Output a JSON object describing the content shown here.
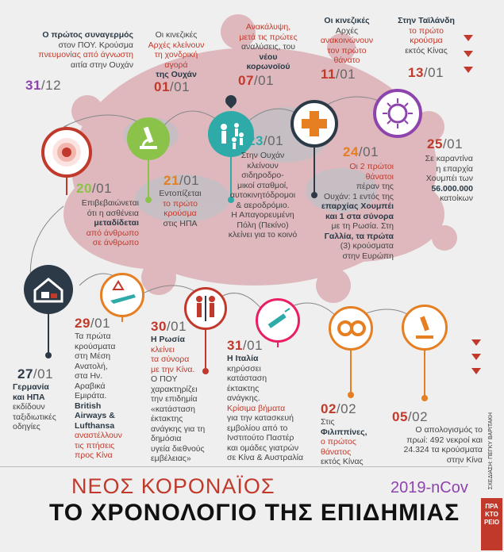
{
  "title_top": "ΝΕΟΣ ΚΟΡΟΝΑΪΟΣ",
  "title_main": "ΤΟ ΧΡΟΝΟΛΟΓΙΟ ΤΗΣ ΕΠΙΔΗΜΙΑΣ",
  "virus_name": "2019-nCov",
  "credit": "ΣΧΕΔΙΑΣΗ: ΠΕΓΚΥ ΒΑΡΙΤΑΚΗ",
  "logo": "ΠΡΑ ΚΤΟ ΡΕΙΟ",
  "colors": {
    "red": "#c0392b",
    "green": "#8bc34a",
    "orange": "#e67e22",
    "purple": "#8e44ad",
    "teal": "#2eaaa8",
    "pink": "#e91e63",
    "navy": "#2b3a46",
    "virus": "#d9a6ad"
  },
  "events": [
    {
      "date": "31",
      "month": "/12",
      "icon": "alarm-icon",
      "l1": "Ο πρώτος συναγερμός",
      "l2": "στον ΠΟΥ. Κρούσμα",
      "l3": "πνευμονίας από άγνωστη",
      "l4": "αιτία στην Ουχάν"
    },
    {
      "date": "01",
      "month": "/01",
      "l1": "Οι κινεζικές",
      "l2": "Αρχές κλείνουν",
      "l3": "τη χονδρική",
      "l4": "αγορά",
      "l5": "της Ουχάν"
    },
    {
      "date": "07",
      "month": "/01",
      "l1": "Ανακάλυψη,",
      "l2": "μετά τις πρώτες",
      "l3": "αναλύσεις, του",
      "l4": "νέου",
      "l5": "κορωνοϊού"
    },
    {
      "date": "11",
      "month": "/01",
      "l1": "Οι κινεζικές",
      "l2": "Αρχές",
      "l3": "ανακοινώνουν",
      "l4": "τον πρώτο",
      "l5": "θάνατο"
    },
    {
      "date": "13",
      "month": "/01",
      "l1": "Στην Ταϊλάνδη",
      "l2": "το πρώτο",
      "l3": "κρούσμα",
      "l4": "εκτός Κίνας"
    },
    {
      "date": "20",
      "month": "/01",
      "icon": "target-icon",
      "l1": "Επιβεβαιώνεται",
      "l2": "ότι η ασθένεια",
      "l3": "μεταδίδεται",
      "l4": "από άνθρωπο",
      "l5": "σε άνθρωπο"
    },
    {
      "date": "21",
      "month": "/01",
      "icon": "microscope-icon",
      "l1": "Εντοπίζεται",
      "l2": "το πρώτο",
      "l3": "κρούσμα",
      "l4": "στις ΗΠΑ"
    },
    {
      "date": "23",
      "month": "/01",
      "icon": "people-icon",
      "l1": "Στην Ουχάν",
      "l2": "κλείνουν",
      "l3": "σιδηροδρο-",
      "l4": "μικοί σταθμοί,",
      "l5": "αυτοκινητόδρομοι",
      "l6": "& αεροδρόμιο.",
      "l7": "Η Απαγορευμένη",
      "l8": "Πόλη (Πεκίνο)",
      "l9": "κλείνει για το κοινό"
    },
    {
      "date": "24",
      "month": "/01",
      "icon": "medical-cross-icon",
      "l1": "Οι 2 πρώτοι",
      "l2": "θάνατοι",
      "l3": "πέραν της",
      "l4": "Ουχάν: 1 εντός της",
      "l5": "επαρχίας Χουμπέι",
      "l6": "και 1 στα σύνορα",
      "l7": "με τη Ρωσία. Στη",
      "l8": "Γαλλία, τα πρώτα",
      "l9": "(3) κρούσματα",
      "l10": "στην Ευρώπη"
    },
    {
      "date": "25",
      "month": "/01",
      "icon": "virus-icon",
      "l1": "Σε καραντίνα",
      "l2": "η επαρχία",
      "l3": "Χουμπέι των",
      "l4": "56.000.000",
      "l5": "κατοίκων"
    },
    {
      "date": "27",
      "month": "/01",
      "icon": "house-quarantine-icon",
      "l1": "Γερμανία",
      "l2": "και ΗΠΑ",
      "l3": "εκδίδουν",
      "l4": "ταξιδιωτικές",
      "l5": "οδηγίες"
    },
    {
      "date": "29",
      "month": "/01",
      "icon": "airplane-warning-icon",
      "l1": "Τα πρώτα",
      "l2": "κρούσματα",
      "l3": "στη Μέση",
      "l4": "Ανατολή,",
      "l5": "στα Ην.",
      "l6": "Αραβικά",
      "l7": "Εμιράτα.",
      "l8": "British",
      "l9": "Airways &",
      "l10": "Lufthansa",
      "l11": "αναστέλλουν",
      "l12": "τις πτήσεις",
      "l13": "προς Κίνα"
    },
    {
      "date": "30",
      "month": "/01",
      "icon": "border-icon",
      "l1": "Η Ρωσία",
      "l2": "κλείνει",
      "l3": "τα σύνορα",
      "l4": "με την Κίνα.",
      "l5": "Ο ΠΟΥ",
      "l6": "χαρακτηρίζει",
      "l7": "την επιδημία",
      "l8": "«κατάσταση",
      "l9": "έκτακτης",
      "l10": "ανάγκης για τη",
      "l11": "δημόσια",
      "l12": "υγεία διεθνούς",
      "l13": "εμβέλειας»"
    },
    {
      "date": "31",
      "month": "/01",
      "icon": "syringe-icon",
      "l1": "Η Ιταλία",
      "l2": "κηρύσσει",
      "l3": "κατάσταση",
      "l4": "έκτακτης",
      "l5": "ανάγκης.",
      "l6": "Κρίσιμα βήματα",
      "l7": "για την κατασκευή",
      "l8": "εμβολίου από το",
      "l9": "Ινστιτούτο Παστέρ",
      "l10": "και ομάδες γιατρών",
      "l11": "σε Κίνα & Αυστραλία"
    },
    {
      "date": "02",
      "month": "/02",
      "icon": "gears-icon",
      "l1": "Στις",
      "l2": "Φιλιππίνες,",
      "l3": "ο πρώτος",
      "l4": "θάνατος",
      "l5": "εκτός Κίνας"
    },
    {
      "date": "05",
      "month": "/02",
      "icon": "microscope-icon",
      "l1": "Ο απολογισμός το",
      "l2": "πρωί: 492 νεκροί και",
      "l3": "24.324 τα κρούσματα",
      "l4": "στην Κίνα"
    }
  ]
}
